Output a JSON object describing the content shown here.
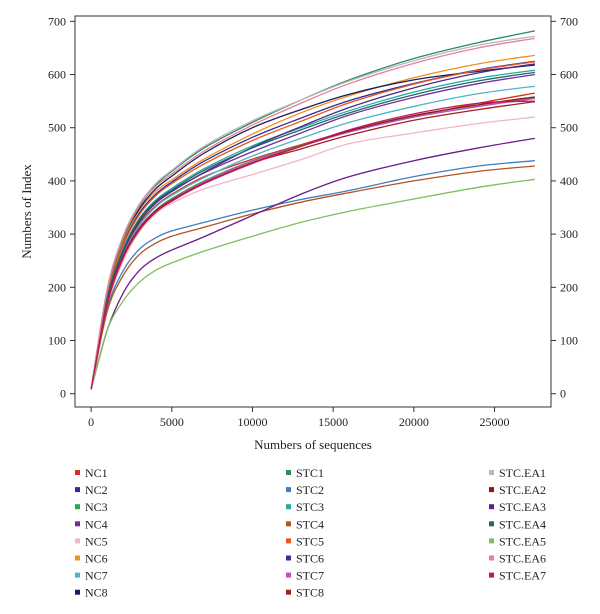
{
  "chart_data": {
    "type": "line",
    "title": "",
    "xlabel": "Numbers of sequences",
    "ylabel": "Numbers of Index",
    "xlim": [
      -1000,
      28500
    ],
    "ylim": [
      -25,
      710
    ],
    "x_ticks": [
      0,
      5000,
      10000,
      15000,
      20000,
      25000
    ],
    "y_ticks": [
      0,
      100,
      200,
      300,
      400,
      500,
      600,
      700
    ],
    "grid": false,
    "legend_position": "bottom",
    "x": [
      0,
      1000,
      2000,
      3000,
      4000,
      5000,
      7000,
      10000,
      13000,
      16000,
      20000,
      24000,
      27500
    ],
    "series": [
      {
        "name": "NC1",
        "color": "#d7301f",
        "values": [
          8,
          175,
          265,
          320,
          353,
          375,
          408,
          441,
          468,
          494,
          521,
          546,
          565
        ]
      },
      {
        "name": "NC2",
        "color": "#2b2d9a",
        "values": [
          8,
          188,
          283,
          340,
          375,
          398,
          437,
          482,
          518,
          551,
          583,
          609,
          625
        ]
      },
      {
        "name": "NC3",
        "color": "#31a354",
        "values": [
          8,
          170,
          258,
          312,
          345,
          367,
          400,
          438,
          466,
          492,
          520,
          540,
          556
        ]
      },
      {
        "name": "NC4",
        "color": "#7b2a9c",
        "values": [
          8,
          178,
          268,
          324,
          359,
          381,
          415,
          455,
          490,
          524,
          557,
          583,
          600
        ]
      },
      {
        "name": "NC5",
        "color": "#f4b4c8",
        "values": [
          8,
          165,
          250,
          305,
          338,
          358,
          385,
          412,
          440,
          470,
          490,
          508,
          520
        ]
      },
      {
        "name": "NC6",
        "color": "#f28e1c",
        "values": [
          8,
          192,
          288,
          345,
          380,
          402,
          441,
          488,
          528,
          560,
          594,
          620,
          636
        ]
      },
      {
        "name": "NC7",
        "color": "#4bb6c8",
        "values": [
          8,
          172,
          262,
          317,
          351,
          373,
          406,
          447,
          480,
          510,
          540,
          564,
          578
        ]
      },
      {
        "name": "NC8",
        "color": "#1c1c5c",
        "values": [
          8,
          194,
          292,
          348,
          385,
          409,
          452,
          500,
          534,
          563,
          590,
          606,
          618
        ]
      },
      {
        "name": "STC1",
        "color": "#2e8b57",
        "values": [
          8,
          192,
          292,
          352,
          392,
          418,
          462,
          510,
          552,
          590,
          630,
          660,
          682
        ]
      },
      {
        "name": "STC2",
        "color": "#3f7fbf",
        "values": [
          8,
          160,
          232,
          272,
          293,
          306,
          322,
          345,
          365,
          382,
          408,
          428,
          438
        ]
      },
      {
        "name": "STC3",
        "color": "#27a8a0",
        "values": [
          8,
          180,
          273,
          330,
          364,
          386,
          423,
          466,
          500,
          532,
          567,
          593,
          608
        ]
      },
      {
        "name": "STC4",
        "color": "#b5541c",
        "values": [
          8,
          155,
          223,
          262,
          283,
          296,
          313,
          338,
          360,
          378,
          400,
          418,
          428
        ]
      },
      {
        "name": "STC5",
        "color": "#e8561a",
        "values": [
          8,
          186,
          280,
          337,
          372,
          395,
          432,
          476,
          512,
          547,
          582,
          608,
          624
        ]
      },
      {
        "name": "STC6",
        "color": "#4a2c8c",
        "values": [
          8,
          178,
          268,
          324,
          358,
          380,
          416,
          463,
          502,
          538,
          575,
          603,
          620
        ]
      },
      {
        "name": "STC7",
        "color": "#c04ec4",
        "values": [
          8,
          170,
          258,
          312,
          344,
          365,
          398,
          437,
          465,
          492,
          520,
          540,
          555
        ]
      },
      {
        "name": "STC8",
        "color": "#a32020",
        "values": [
          8,
          168,
          256,
          308,
          341,
          362,
          395,
          434,
          460,
          486,
          514,
          534,
          549
        ]
      },
      {
        "name": "STC.EA1",
        "color": "#b8b8b8",
        "values": [
          8,
          198,
          298,
          357,
          395,
          420,
          465,
          513,
          552,
          588,
          626,
          655,
          672
        ]
      },
      {
        "name": "STC.EA2",
        "color": "#8b1a1a",
        "values": [
          8,
          172,
          260,
          312,
          344,
          364,
          396,
          434,
          465,
          494,
          523,
          543,
          558
        ]
      },
      {
        "name": "STC.EA3",
        "color": "#6a1c8a",
        "values": [
          8,
          120,
          190,
          232,
          255,
          270,
          295,
          335,
          375,
          408,
          438,
          462,
          480
        ]
      },
      {
        "name": "STC.EA4",
        "color": "#1c6c6c",
        "values": [
          8,
          180,
          272,
          328,
          362,
          383,
          420,
          462,
          496,
          528,
          562,
          588,
          604
        ]
      },
      {
        "name": "STC.EA5",
        "color": "#7fbf5f",
        "values": [
          8,
          120,
          175,
          210,
          232,
          246,
          268,
          296,
          322,
          343,
          366,
          388,
          403
        ]
      },
      {
        "name": "STC.EA6",
        "color": "#e87da0",
        "values": [
          8,
          195,
          295,
          354,
          390,
          413,
          456,
          505,
          546,
          583,
          621,
          650,
          668
        ]
      },
      {
        "name": "STC.EA7",
        "color": "#c2185b",
        "values": [
          8,
          170,
          257,
          310,
          342,
          363,
          395,
          433,
          465,
          496,
          526,
          546,
          550
        ]
      }
    ]
  }
}
